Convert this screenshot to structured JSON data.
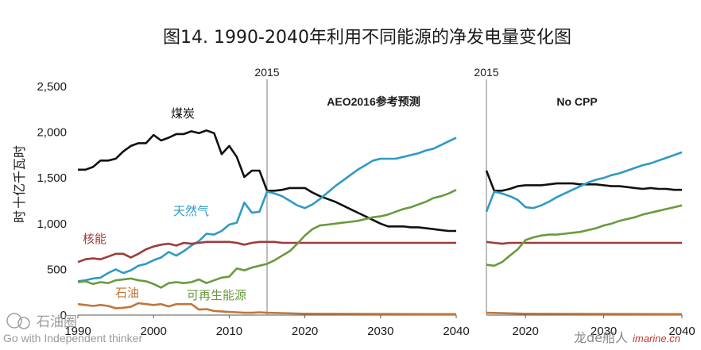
{
  "chart_data": {
    "type": "line",
    "title": "图14. 1990-2040年利用不同能源的净发电量变化图",
    "ylabel": "十亿千瓦时",
    "ylim": [
      0,
      2500
    ],
    "yticks": [
      "0",
      "500",
      "1,000",
      "1,500",
      "2,000",
      "2,500"
    ],
    "grid": false,
    "marker_year": 2015,
    "marker_label": "2015",
    "panels": [
      {
        "title": "AEO2016参考预测",
        "xlim": [
          1990,
          2040
        ],
        "xticks": [
          "1990",
          "2000",
          "2010",
          "2020",
          "2030",
          "2040"
        ],
        "series": [
          {
            "name": "煤炭",
            "color": "#111111",
            "x": [
              1990,
              1991,
              1992,
              1993,
              1994,
              1995,
              1996,
              1997,
              1998,
              1999,
              2000,
              2001,
              2002,
              2003,
              2004,
              2005,
              2006,
              2007,
              2008,
              2009,
              2010,
              2011,
              2012,
              2013,
              2014,
              2015,
              2016,
              2017,
              2018,
              2019,
              2020,
              2021,
              2022,
              2023,
              2024,
              2025,
              2026,
              2027,
              2028,
              2029,
              2030,
              2031,
              2032,
              2033,
              2034,
              2035,
              2036,
              2037,
              2038,
              2039,
              2040
            ],
            "y": [
              1590,
              1590,
              1620,
              1690,
              1690,
              1710,
              1790,
              1850,
              1880,
              1880,
              1970,
              1910,
              1940,
              1980,
              1980,
              2010,
              1990,
              2020,
              1990,
              1760,
              1850,
              1730,
              1510,
              1580,
              1580,
              1360,
              1360,
              1370,
              1390,
              1390,
              1390,
              1340,
              1300,
              1270,
              1240,
              1200,
              1160,
              1120,
              1080,
              1040,
              1000,
              970,
              970,
              970,
              960,
              960,
              950,
              940,
              930,
              920,
              920
            ]
          },
          {
            "name": "天然气",
            "color": "#2f9ac4",
            "x": [
              1990,
              1991,
              1992,
              1993,
              1994,
              1995,
              1996,
              1997,
              1998,
              1999,
              2000,
              2001,
              2002,
              2003,
              2004,
              2005,
              2006,
              2007,
              2008,
              2009,
              2010,
              2011,
              2012,
              2013,
              2014,
              2015,
              2016,
              2017,
              2018,
              2019,
              2020,
              2021,
              2022,
              2023,
              2024,
              2025,
              2026,
              2027,
              2028,
              2029,
              2030,
              2031,
              2032,
              2033,
              2034,
              2035,
              2036,
              2037,
              2038,
              2039,
              2040
            ],
            "y": [
              370,
              380,
              400,
              410,
              460,
              500,
              460,
              490,
              540,
              560,
              600,
              630,
              690,
              650,
              700,
              760,
              810,
              890,
              880,
              920,
              990,
              1010,
              1230,
              1120,
              1130,
              1350,
              1330,
              1300,
              1250,
              1200,
              1170,
              1210,
              1270,
              1340,
              1410,
              1470,
              1530,
              1590,
              1640,
              1690,
              1710,
              1710,
              1710,
              1730,
              1750,
              1770,
              1800,
              1820,
              1860,
              1900,
              1940
            ]
          },
          {
            "name": "核能",
            "color": "#9e3b3b",
            "x": [
              1990,
              1991,
              1992,
              1993,
              1994,
              1995,
              1996,
              1997,
              1998,
              1999,
              2000,
              2001,
              2002,
              2003,
              2004,
              2005,
              2006,
              2007,
              2008,
              2009,
              2010,
              2011,
              2012,
              2013,
              2014,
              2015,
              2016,
              2017,
              2018,
              2019,
              2020,
              2025,
              2030,
              2035,
              2040
            ],
            "y": [
              580,
              610,
              620,
              610,
              640,
              670,
              670,
              630,
              670,
              720,
              750,
              770,
              780,
              760,
              790,
              780,
              790,
              800,
              800,
              800,
              800,
              790,
              770,
              790,
              800,
              800,
              800,
              790,
              790,
              790,
              790,
              790,
              790,
              790,
              790
            ]
          },
          {
            "name": "可再生能源",
            "color": "#6a9a3f",
            "x": [
              1990,
              1991,
              1992,
              1993,
              1994,
              1995,
              1996,
              1997,
              1998,
              1999,
              2000,
              2001,
              2002,
              2003,
              2004,
              2005,
              2006,
              2007,
              2008,
              2009,
              2010,
              2011,
              2012,
              2013,
              2014,
              2015,
              2016,
              2017,
              2018,
              2019,
              2020,
              2021,
              2022,
              2023,
              2024,
              2025,
              2026,
              2027,
              2028,
              2029,
              2030,
              2031,
              2032,
              2033,
              2034,
              2035,
              2036,
              2037,
              2038,
              2039,
              2040
            ],
            "y": [
              360,
              370,
              340,
              360,
              350,
              380,
              390,
              400,
              380,
              370,
              340,
              300,
              350,
              360,
              350,
              360,
              390,
              350,
              380,
              410,
              420,
              510,
              490,
              520,
              540,
              560,
              600,
              650,
              700,
              780,
              870,
              940,
              980,
              990,
              1000,
              1010,
              1020,
              1030,
              1050,
              1070,
              1080,
              1100,
              1130,
              1160,
              1180,
              1210,
              1240,
              1280,
              1300,
              1330,
              1370
            ]
          },
          {
            "name": "石油",
            "color": "#c0763a",
            "x": [
              1990,
              1991,
              1992,
              1993,
              1994,
              1995,
              1996,
              1997,
              1998,
              1999,
              2000,
              2001,
              2002,
              2003,
              2004,
              2005,
              2006,
              2007,
              2008,
              2009,
              2010,
              2011,
              2012,
              2013,
              2014,
              2015,
              2020,
              2030,
              2040
            ],
            "y": [
              120,
              110,
              100,
              110,
              100,
              75,
              80,
              90,
              130,
              120,
              110,
              120,
              95,
              120,
              120,
              120,
              60,
              65,
              45,
              40,
              35,
              30,
              25,
              25,
              30,
              25,
              15,
              12,
              10
            ]
          }
        ]
      },
      {
        "title": "No CPP",
        "xlim": [
          2015,
          2040
        ],
        "xticks": [
          "2020",
          "2030",
          "2040"
        ],
        "series": [
          {
            "name": "煤炭",
            "color": "#111111",
            "x": [
              2015,
              2016,
              2017,
              2018,
              2019,
              2020,
              2021,
              2022,
              2023,
              2024,
              2025,
              2026,
              2027,
              2028,
              2029,
              2030,
              2031,
              2032,
              2033,
              2034,
              2035,
              2036,
              2037,
              2038,
              2039,
              2040
            ],
            "y": [
              1580,
              1360,
              1360,
              1380,
              1410,
              1420,
              1420,
              1420,
              1430,
              1440,
              1440,
              1440,
              1430,
              1430,
              1430,
              1420,
              1410,
              1410,
              1400,
              1390,
              1380,
              1390,
              1380,
              1380,
              1370,
              1370
            ]
          },
          {
            "name": "天然气",
            "color": "#2f9ac4",
            "x": [
              2015,
              2016,
              2017,
              2018,
              2019,
              2020,
              2021,
              2022,
              2023,
              2024,
              2025,
              2026,
              2027,
              2028,
              2029,
              2030,
              2031,
              2032,
              2033,
              2034,
              2035,
              2036,
              2037,
              2038,
              2039,
              2040
            ],
            "y": [
              1130,
              1350,
              1330,
              1300,
              1260,
              1180,
              1170,
              1200,
              1240,
              1290,
              1330,
              1370,
              1410,
              1450,
              1480,
              1500,
              1530,
              1550,
              1580,
              1610,
              1640,
              1660,
              1690,
              1720,
              1750,
              1780
            ]
          },
          {
            "name": "核能",
            "color": "#9e3b3b",
            "x": [
              2015,
              2016,
              2017,
              2018,
              2019,
              2020,
              2025,
              2030,
              2035,
              2040
            ],
            "y": [
              800,
              790,
              780,
              790,
              790,
              790,
              790,
              790,
              790,
              790
            ]
          },
          {
            "name": "可再生能源",
            "color": "#6a9a3f",
            "x": [
              2015,
              2016,
              2017,
              2018,
              2019,
              2020,
              2021,
              2022,
              2023,
              2024,
              2025,
              2026,
              2027,
              2028,
              2029,
              2030,
              2031,
              2032,
              2033,
              2034,
              2035,
              2036,
              2037,
              2038,
              2039,
              2040
            ],
            "y": [
              550,
              540,
              580,
              650,
              720,
              820,
              850,
              870,
              880,
              880,
              890,
              900,
              910,
              930,
              950,
              980,
              1000,
              1030,
              1050,
              1070,
              1100,
              1120,
              1140,
              1160,
              1180,
              1200
            ]
          },
          {
            "name": "石油",
            "color": "#c0763a",
            "x": [
              2015,
              2020,
              2030,
              2040
            ],
            "y": [
              25,
              15,
              12,
              10
            ]
          }
        ]
      }
    ]
  },
  "watermarks": {
    "left_cn": "石油圈",
    "left_en": "Go with Independent thinker",
    "right_cn": "龙de船人",
    "right_url": "imarine.cn"
  }
}
